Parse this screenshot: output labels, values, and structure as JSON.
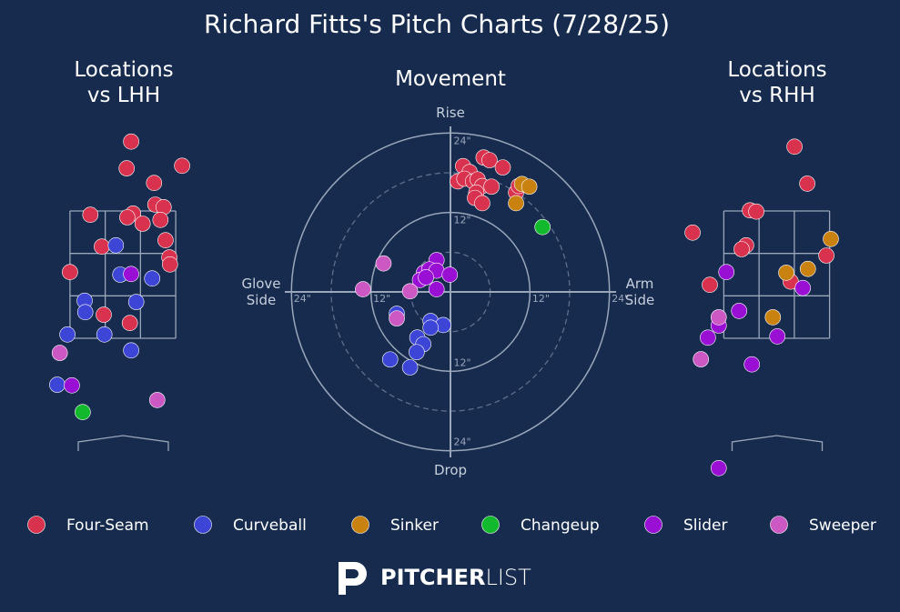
{
  "title": "Richard Fitts's Pitch Charts (7/28/25)",
  "logo": {
    "bold": "PITCHER",
    "light": "LIST"
  },
  "chart_data": [
    {
      "type": "scatter",
      "title": "Locations\nvs LHH",
      "xlim": [
        -1.5,
        1.5
      ],
      "ylim": [
        -0.6,
        5.0
      ],
      "zone": {
        "x": [
          -0.83,
          0.83
        ],
        "y": [
          1.5,
          3.5
        ]
      },
      "series": [
        {
          "name": "Four-Seam",
          "color": "#d8324e",
          "x": [
            0.13,
            0.06,
            0.93,
            0.49,
            0.51,
            0.64,
            0.16,
            0.07,
            0.31,
            0.59,
            -0.51,
            -0.33,
            0.67,
            0.73,
            0.74,
            -0.83,
            -0.3,
            0.11
          ],
          "y": [
            4.59,
            4.17,
            4.21,
            3.94,
            3.6,
            3.56,
            3.46,
            3.4,
            3.3,
            3.36,
            3.44,
            2.94,
            3.04,
            2.77,
            2.66,
            2.54,
            1.87,
            1.74
          ]
        },
        {
          "name": "Curveball",
          "color": "#3d45d6",
          "x": [
            -0.11,
            -0.04,
            0.46,
            0.21,
            -0.6,
            -0.59,
            -0.87,
            -0.29,
            0.13,
            -1.03
          ],
          "y": [
            2.96,
            2.5,
            2.44,
            2.07,
            2.09,
            1.91,
            1.56,
            1.56,
            1.31,
            0.77
          ]
        },
        {
          "name": "Sinker",
          "color": "#c9820f",
          "x": [],
          "y": []
        },
        {
          "name": "Changeup",
          "color": "#13b92c",
          "x": [
            -0.63
          ],
          "y": [
            0.34
          ]
        },
        {
          "name": "Slider",
          "color": "#9a0fd4",
          "x": [
            0.13,
            -0.8
          ],
          "y": [
            2.51,
            0.76
          ]
        },
        {
          "name": "Sweeper",
          "color": "#cc59c3",
          "x": [
            -0.99,
            0.54
          ],
          "y": [
            1.27,
            0.53
          ]
        }
      ]
    },
    {
      "type": "polar-scatter",
      "title": "Movement",
      "xlim": [
        -25,
        25
      ],
      "ylim": [
        -25,
        25
      ],
      "xlabel_left": "Glove\nSide",
      "xlabel_right": "Arm\nSide",
      "ylabel_top": "Rise",
      "ylabel_bottom": "Drop",
      "xticks": [
        {
          "value": -24,
          "label": "24\""
        },
        {
          "value": -12,
          "label": "12\""
        },
        {
          "value": 12,
          "label": "12\""
        },
        {
          "value": 24,
          "label": "24\""
        }
      ],
      "yticks": [
        {
          "value": -24,
          "label": "24\""
        },
        {
          "value": -12,
          "label": "12\""
        },
        {
          "value": 12,
          "label": "12\""
        },
        {
          "value": 24,
          "label": "24\""
        }
      ],
      "dashed_rings": [
        6,
        18
      ],
      "series": [
        {
          "name": "Four-Seam",
          "color": "#d8324e",
          "x": [
            1.9,
            5.0,
            5.9,
            7.9,
            2.9,
            1.1,
            2.1,
            3.4,
            4.1,
            4.8,
            6.2,
            3.9,
            3.7,
            4.8,
            9.9,
            10.3
          ],
          "y": [
            19.0,
            20.3,
            19.9,
            18.8,
            18.1,
            16.7,
            17.1,
            16.7,
            17.0,
            16.0,
            15.9,
            15.0,
            14.2,
            13.4,
            15.0,
            16.0
          ]
        },
        {
          "name": "Curveball",
          "color": "#3d45d6",
          "x": [
            -8.1,
            -3.0,
            -1.1,
            -3.0,
            -5.0,
            -4.1,
            -5.1,
            -9.1,
            -6.1
          ],
          "y": [
            -3.3,
            -4.4,
            -5.0,
            -5.4,
            -6.9,
            -7.9,
            -9.1,
            -10.2,
            -11.4
          ]
        },
        {
          "name": "Sinker",
          "color": "#c9820f",
          "x": [
            10.8,
            11.9,
            9.9
          ],
          "y": [
            16.3,
            15.9,
            13.4
          ]
        },
        {
          "name": "Changeup",
          "color": "#13b92c",
          "x": [
            13.9
          ],
          "y": [
            9.8
          ]
        },
        {
          "name": "Slider",
          "color": "#9a0fd4",
          "x": [
            -2.1,
            -4.0,
            -3.2,
            -2.1,
            -0.1,
            -4.6,
            -2.1,
            -3.7
          ],
          "y": [
            4.8,
            2.9,
            3.4,
            3.2,
            2.6,
            1.8,
            0.4,
            2.2
          ]
        },
        {
          "name": "Sweeper",
          "color": "#cc59c3",
          "x": [
            -10.1,
            -13.2,
            -6.1,
            -8.1
          ],
          "y": [
            4.3,
            0.4,
            0.1,
            -4.0
          ]
        }
      ]
    },
    {
      "type": "scatter",
      "title": "Locations\nvs RHH",
      "xlim": [
        -1.5,
        1.5
      ],
      "ylim": [
        -0.6,
        5.0
      ],
      "zone": {
        "x": [
          -0.83,
          0.83
        ],
        "y": [
          1.5,
          3.5
        ]
      },
      "series": [
        {
          "name": "Four-Seam",
          "color": "#d8324e",
          "x": [
            0.28,
            0.48,
            -0.42,
            -0.32,
            -1.32,
            -0.48,
            -0.55,
            0.78,
            -1.05,
            0.22
          ],
          "y": [
            4.51,
            3.93,
            3.51,
            3.49,
            3.16,
            2.96,
            2.9,
            2.8,
            2.34,
            2.39
          ]
        },
        {
          "name": "Curveball",
          "color": "#3d45d6",
          "x": [],
          "y": []
        },
        {
          "name": "Sinker",
          "color": "#c9820f",
          "x": [
            0.85,
            0.15,
            0.49,
            -0.06
          ],
          "y": [
            3.06,
            2.53,
            2.59,
            1.83
          ]
        },
        {
          "name": "Changeup",
          "color": "#13b92c",
          "x": [],
          "y": []
        },
        {
          "name": "Slider",
          "color": "#9a0fd4",
          "x": [
            -0.79,
            0.41,
            -0.59,
            -0.91,
            -1.08,
            0.01,
            -0.39,
            -0.91
          ],
          "y": [
            2.54,
            2.29,
            1.93,
            1.7,
            1.51,
            1.53,
            1.09,
            -0.54
          ]
        },
        {
          "name": "Sweeper",
          "color": "#cc59c3",
          "x": [
            -0.91,
            -1.19
          ],
          "y": [
            1.83,
            1.17
          ]
        }
      ]
    }
  ]
}
